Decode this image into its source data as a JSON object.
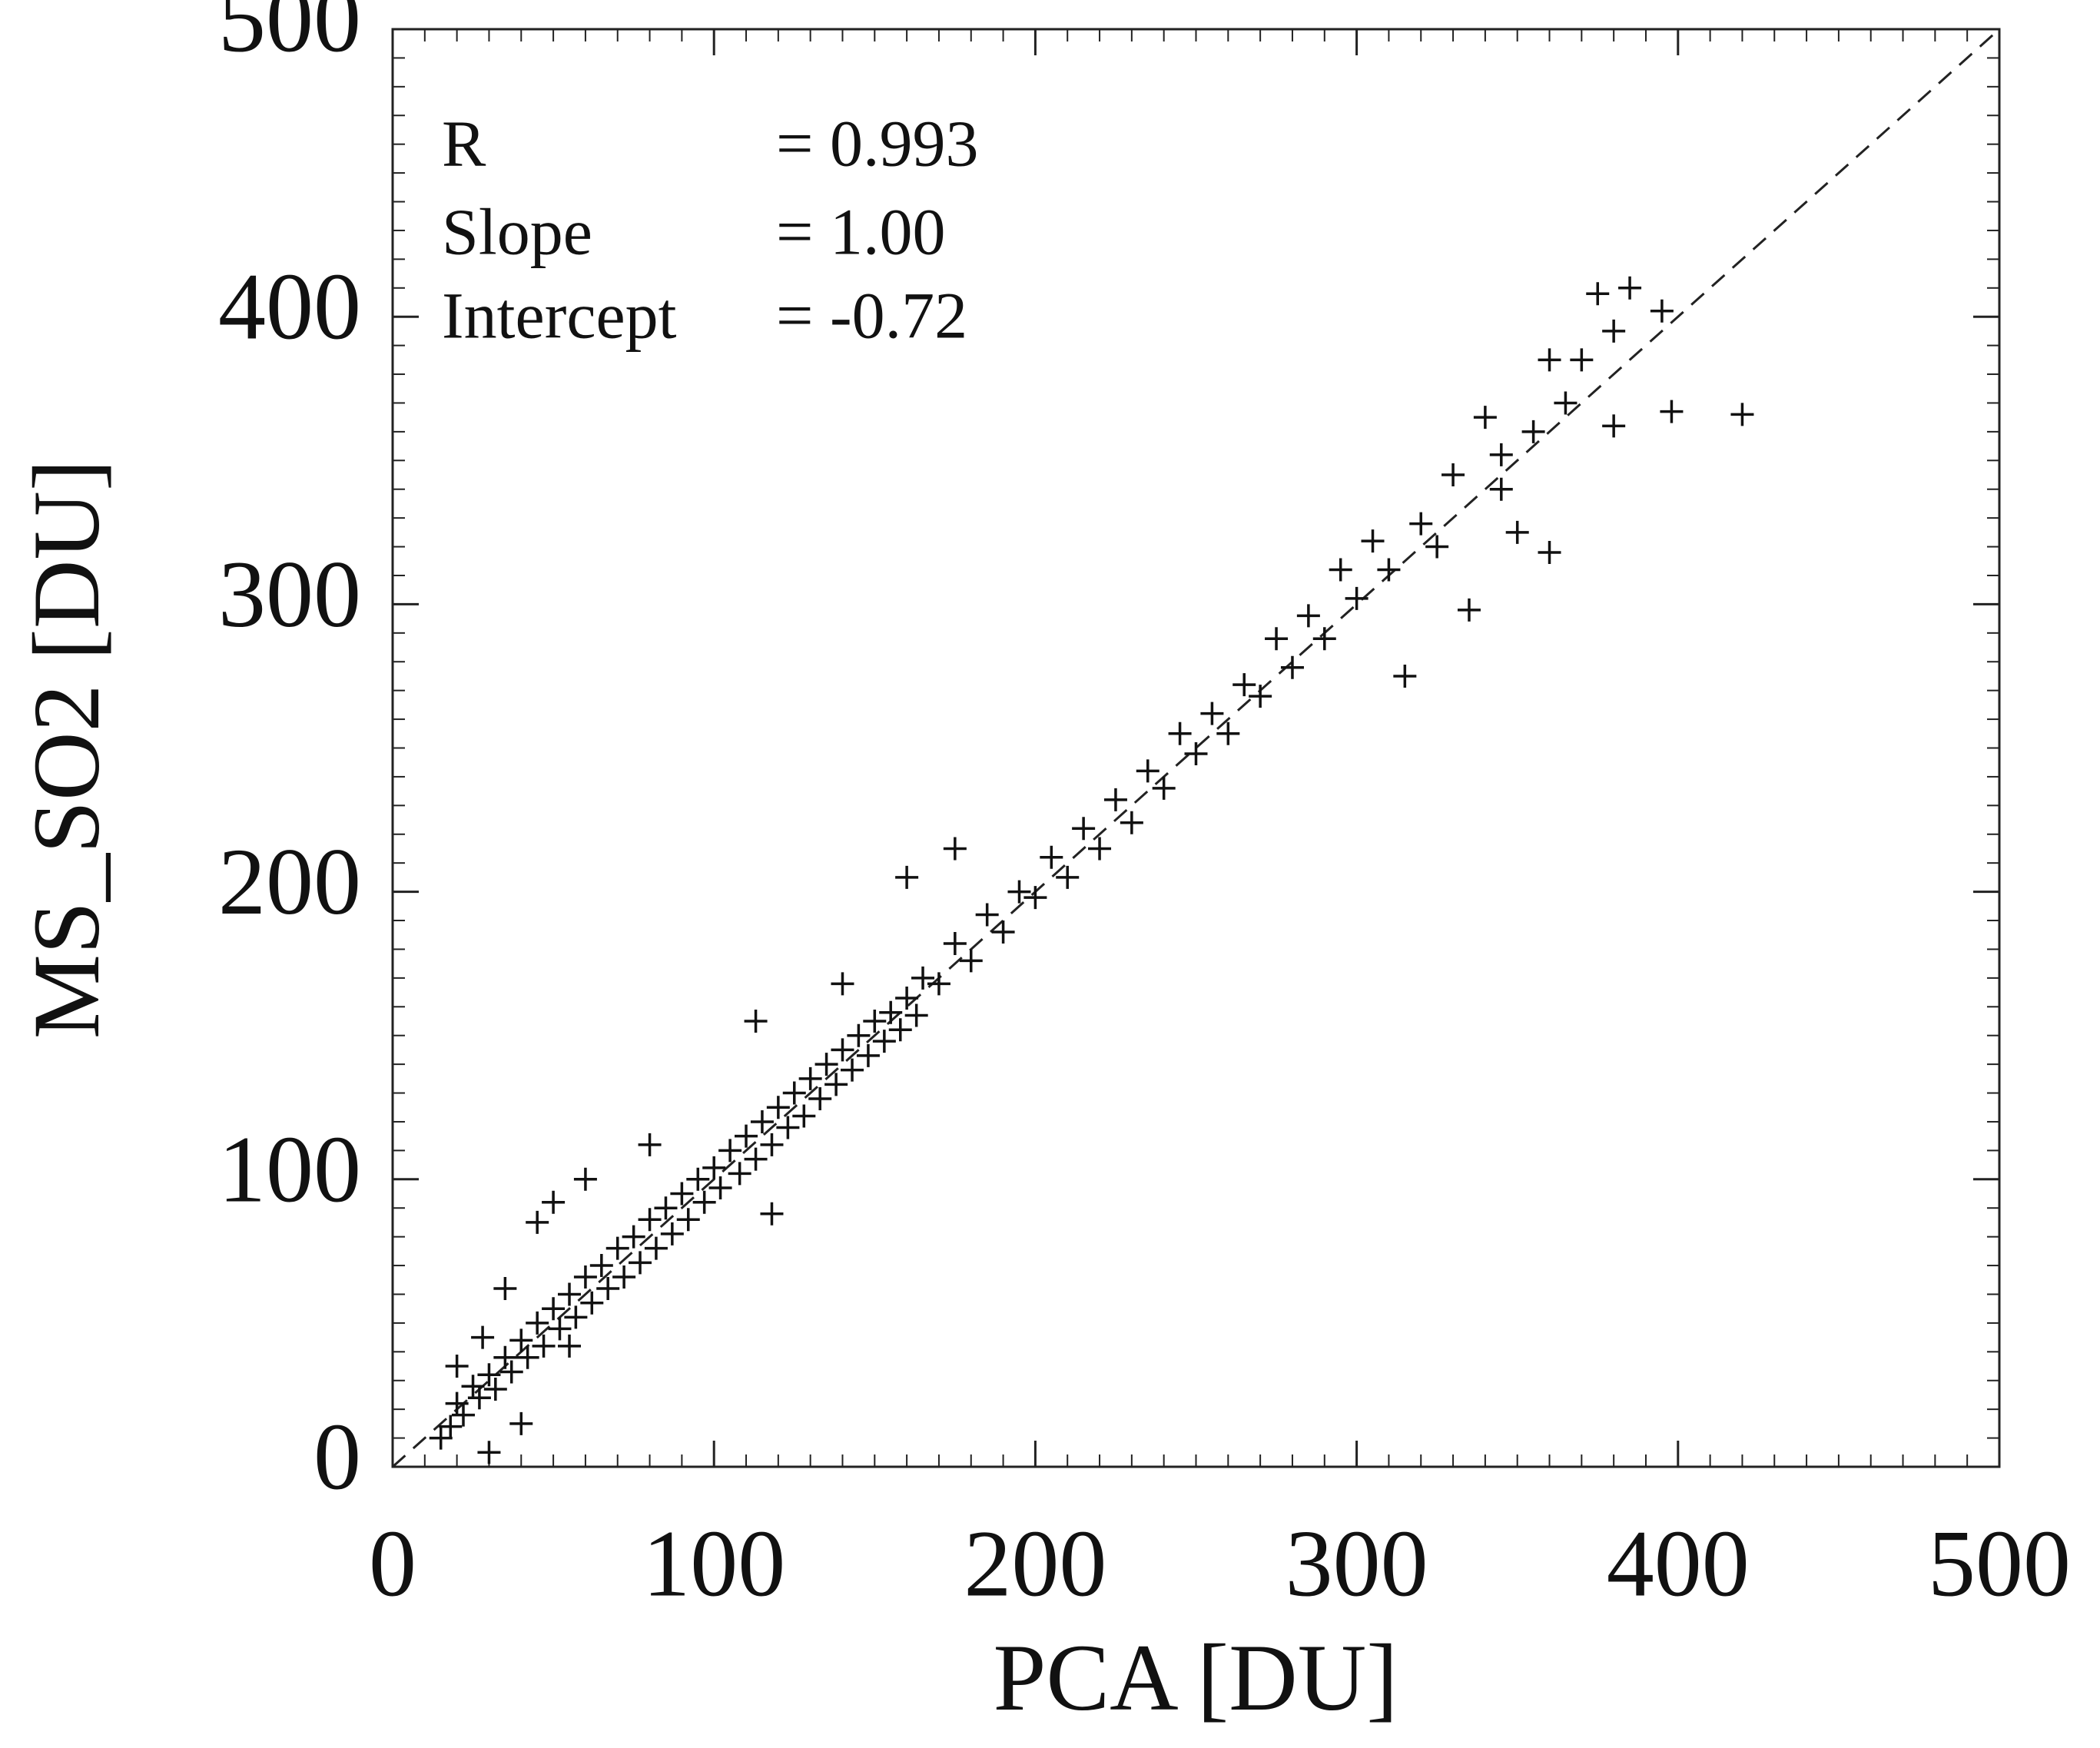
{
  "chart_data": {
    "type": "scatter",
    "x_label": "PCA [DU]",
    "y_label": "MS_SO2 [DU]",
    "annotations": [
      {
        "name": "R",
        "text": "= 0.993"
      },
      {
        "name": "Slope",
        "text": "= 1.00"
      },
      {
        "name": "Intercept",
        "text": "= -0.72"
      }
    ],
    "xlim": [
      0,
      500
    ],
    "ylim": [
      0,
      500
    ],
    "xticks": [
      0,
      100,
      200,
      300,
      400,
      500
    ],
    "yticks": [
      0,
      100,
      200,
      300,
      400,
      500
    ],
    "marker": "+",
    "color": "#111111",
    "reference_line": {
      "x": [
        0,
        500
      ],
      "y": [
        0,
        500
      ],
      "style": "dashed"
    },
    "x": [
      15,
      18,
      20,
      22,
      25,
      27,
      30,
      32,
      35,
      37,
      40,
      42,
      45,
      47,
      50,
      52,
      55,
      57,
      60,
      62,
      65,
      67,
      70,
      72,
      75,
      77,
      80,
      82,
      85,
      87,
      90,
      92,
      95,
      97,
      100,
      102,
      105,
      108,
      110,
      113,
      115,
      118,
      120,
      123,
      125,
      128,
      130,
      133,
      135,
      138,
      140,
      143,
      145,
      148,
      150,
      153,
      155,
      158,
      160,
      163,
      20,
      28,
      35,
      45,
      50,
      60,
      80,
      113,
      160,
      175,
      140,
      30,
      40,
      55,
      118,
      165,
      170,
      175,
      180,
      185,
      190,
      195,
      200,
      205,
      210,
      215,
      220,
      225,
      230,
      235,
      240,
      245,
      250,
      255,
      260,
      265,
      270,
      275,
      280,
      285,
      290,
      295,
      300,
      305,
      310,
      315,
      320,
      325,
      330,
      335,
      340,
      345,
      350,
      355,
      360,
      365,
      370,
      375,
      380,
      385,
      395,
      360,
      398,
      420,
      345,
      380
    ],
    "y": [
      10,
      14,
      22,
      18,
      28,
      24,
      32,
      27,
      38,
      33,
      44,
      38,
      50,
      42,
      55,
      48,
      60,
      52,
      66,
      57,
      70,
      62,
      76,
      66,
      80,
      71,
      86,
      76,
      90,
      81,
      95,
      86,
      100,
      92,
      104,
      97,
      110,
      102,
      115,
      107,
      120,
      112,
      125,
      118,
      130,
      122,
      135,
      128,
      140,
      133,
      145,
      138,
      150,
      143,
      155,
      148,
      158,
      152,
      163,
      157,
      35,
      45,
      62,
      85,
      92,
      100,
      112,
      155,
      205,
      215,
      168,
      5,
      15,
      42,
      88,
      170,
      168,
      182,
      176,
      192,
      186,
      200,
      198,
      212,
      205,
      222,
      215,
      232,
      224,
      242,
      236,
      255,
      248,
      262,
      255,
      272,
      268,
      288,
      278,
      296,
      288,
      312,
      302,
      322,
      312,
      275,
      328,
      320,
      345,
      298,
      365,
      352,
      325,
      360,
      385,
      370,
      385,
      408,
      395,
      410,
      402,
      318,
      367,
      366,
      340,
      362
    ]
  }
}
